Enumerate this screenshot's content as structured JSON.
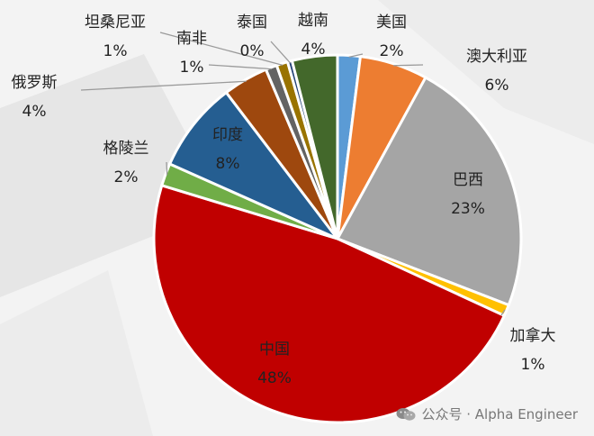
{
  "chart_data": {
    "type": "pie",
    "title": "",
    "slices": [
      {
        "label": "美国",
        "pct_text": "2%",
        "value": 2,
        "color": "#5b9bd5"
      },
      {
        "label": "澳大利亚",
        "pct_text": "6%",
        "value": 6,
        "color": "#ed7d31"
      },
      {
        "label": "巴西",
        "pct_text": "23%",
        "value": 23,
        "color": "#a5a5a5"
      },
      {
        "label": "加拿大",
        "pct_text": "1%",
        "value": 1,
        "color": "#ffc000"
      },
      {
        "label": "中国",
        "pct_text": "48%",
        "value": 48,
        "color": "#c00000"
      },
      {
        "label": "格陵兰",
        "pct_text": "2%",
        "value": 2,
        "color": "#70ad47"
      },
      {
        "label": "印度",
        "pct_text": "8%",
        "value": 8,
        "color": "#255e91"
      },
      {
        "label": "俄罗斯",
        "pct_text": "4%",
        "value": 4,
        "color": "#9e480e"
      },
      {
        "label": "南非",
        "pct_text": "1%",
        "value": 1,
        "color": "#636363"
      },
      {
        "label": "坦桑尼亚",
        "pct_text": "1%",
        "value": 1,
        "color": "#997300"
      },
      {
        "label": "泰国",
        "pct_text": "0%",
        "value": 0.4,
        "color": "#264478"
      },
      {
        "label": "越南",
        "pct_text": "4%",
        "value": 4,
        "color": "#43682b"
      }
    ]
  },
  "watermark": {
    "text": "公众号 · Alpha Engineer",
    "icon": "wechat-icon"
  }
}
